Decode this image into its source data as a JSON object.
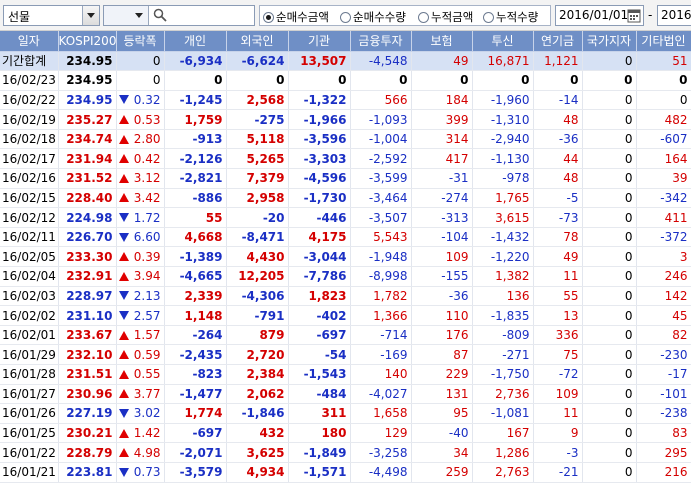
{
  "toolbar": {
    "market_select": "선물",
    "search_value": "",
    "radios": [
      {
        "label": "순매수금액",
        "checked": true
      },
      {
        "label": "순매수수량",
        "checked": false
      },
      {
        "label": "누적금액",
        "checked": false
      },
      {
        "label": "누적수량",
        "checked": false
      }
    ],
    "start_date": "2016/01/01",
    "date_sep": "-",
    "end_date": "2016"
  },
  "columns": [
    "일자",
    "KOSPI200",
    "등락폭",
    "개인",
    "외국인",
    "기관",
    "금융투자",
    "보험",
    "투신",
    "연기금",
    "국가지자",
    "기타법인"
  ],
  "rows": [
    {
      "date": "기간합계",
      "kospi": "234.95",
      "dir": "",
      "chg": "0",
      "c": [
        "-6,934",
        "-6,624",
        "13,507",
        "-4,548",
        "49",
        "16,871",
        "1,121",
        "0",
        "51"
      ],
      "summary": true
    },
    {
      "date": "16/02/23",
      "kospi": "234.95",
      "dir": "",
      "chg": "0",
      "c": [
        "0",
        "0",
        "0",
        "0",
        "0",
        "0",
        "0",
        "0",
        "0"
      ],
      "zero": true
    },
    {
      "date": "16/02/22",
      "kospi": "234.95",
      "dir": "down",
      "chg": "0.32",
      "c": [
        "-1,245",
        "2,568",
        "-1,322",
        "566",
        "184",
        "-1,960",
        "-14",
        "0",
        "0"
      ]
    },
    {
      "date": "16/02/19",
      "kospi": "235.27",
      "dir": "up",
      "chg": "0.53",
      "c": [
        "1,759",
        "-275",
        "-1,966",
        "-1,093",
        "399",
        "-1,310",
        "48",
        "0",
        "482"
      ]
    },
    {
      "date": "16/02/18",
      "kospi": "234.74",
      "dir": "up",
      "chg": "2.80",
      "c": [
        "-913",
        "5,118",
        "-3,596",
        "-1,004",
        "314",
        "-2,940",
        "-36",
        "0",
        "-607"
      ]
    },
    {
      "date": "16/02/17",
      "kospi": "231.94",
      "dir": "up",
      "chg": "0.42",
      "c": [
        "-2,126",
        "5,265",
        "-3,303",
        "-2,592",
        "417",
        "-1,130",
        "44",
        "0",
        "164"
      ]
    },
    {
      "date": "16/02/16",
      "kospi": "231.52",
      "dir": "up",
      "chg": "3.12",
      "c": [
        "-2,821",
        "7,379",
        "-4,596",
        "-3,599",
        "-31",
        "-978",
        "48",
        "0",
        "39"
      ]
    },
    {
      "date": "16/02/15",
      "kospi": "228.40",
      "dir": "up",
      "chg": "3.42",
      "c": [
        "-886",
        "2,958",
        "-1,730",
        "-3,464",
        "-274",
        "1,765",
        "-5",
        "0",
        "-342"
      ]
    },
    {
      "date": "16/02/12",
      "kospi": "224.98",
      "dir": "down",
      "chg": "1.72",
      "c": [
        "55",
        "-20",
        "-446",
        "-3,507",
        "-313",
        "3,615",
        "-73",
        "0",
        "411"
      ]
    },
    {
      "date": "16/02/11",
      "kospi": "226.70",
      "dir": "down",
      "chg": "6.60",
      "c": [
        "4,668",
        "-8,471",
        "4,175",
        "5,543",
        "-104",
        "-1,432",
        "78",
        "0",
        "-372"
      ]
    },
    {
      "date": "16/02/05",
      "kospi": "233.30",
      "dir": "up",
      "chg": "0.39",
      "c": [
        "-1,389",
        "4,430",
        "-3,044",
        "-1,948",
        "109",
        "-1,220",
        "49",
        "0",
        "3"
      ]
    },
    {
      "date": "16/02/04",
      "kospi": "232.91",
      "dir": "up",
      "chg": "3.94",
      "c": [
        "-4,665",
        "12,205",
        "-7,786",
        "-8,998",
        "-155",
        "1,382",
        "11",
        "0",
        "246"
      ]
    },
    {
      "date": "16/02/03",
      "kospi": "228.97",
      "dir": "down",
      "chg": "2.13",
      "c": [
        "2,339",
        "-4,306",
        "1,823",
        "1,782",
        "-36",
        "136",
        "55",
        "0",
        "142"
      ]
    },
    {
      "date": "16/02/02",
      "kospi": "231.10",
      "dir": "down",
      "chg": "2.57",
      "c": [
        "1,148",
        "-791",
        "-402",
        "1,366",
        "110",
        "-1,835",
        "13",
        "0",
        "45"
      ]
    },
    {
      "date": "16/02/01",
      "kospi": "233.67",
      "dir": "up",
      "chg": "1.57",
      "c": [
        "-264",
        "879",
        "-697",
        "-714",
        "176",
        "-809",
        "336",
        "0",
        "82"
      ]
    },
    {
      "date": "16/01/29",
      "kospi": "232.10",
      "dir": "up",
      "chg": "0.59",
      "c": [
        "-2,435",
        "2,720",
        "-54",
        "-169",
        "87",
        "-271",
        "75",
        "0",
        "-230"
      ]
    },
    {
      "date": "16/01/28",
      "kospi": "231.51",
      "dir": "up",
      "chg": "0.55",
      "c": [
        "-823",
        "2,384",
        "-1,543",
        "140",
        "229",
        "-1,750",
        "-72",
        "0",
        "-17"
      ]
    },
    {
      "date": "16/01/27",
      "kospi": "230.96",
      "dir": "up",
      "chg": "3.77",
      "c": [
        "-1,477",
        "2,062",
        "-484",
        "-4,027",
        "131",
        "2,736",
        "109",
        "0",
        "-101"
      ]
    },
    {
      "date": "16/01/26",
      "kospi": "227.19",
      "dir": "down",
      "chg": "3.02",
      "c": [
        "1,774",
        "-1,846",
        "311",
        "1,658",
        "95",
        "-1,081",
        "11",
        "0",
        "-238"
      ]
    },
    {
      "date": "16/01/25",
      "kospi": "230.21",
      "dir": "up",
      "chg": "1.42",
      "c": [
        "-697",
        "432",
        "180",
        "129",
        "-40",
        "167",
        "9",
        "0",
        "83"
      ]
    },
    {
      "date": "16/01/22",
      "kospi": "228.79",
      "dir": "up",
      "chg": "4.98",
      "c": [
        "-2,071",
        "3,625",
        "-1,849",
        "-3,258",
        "34",
        "1,286",
        "-3",
        "0",
        "295"
      ]
    },
    {
      "date": "16/01/21",
      "kospi": "223.81",
      "dir": "down",
      "chg": "0.73",
      "c": [
        "-3,579",
        "4,934",
        "-1,571",
        "-4,498",
        "259",
        "2,763",
        "-21",
        "0",
        "216"
      ]
    }
  ],
  "colors": {
    "header_bg": "#6f8fc6",
    "summary_bg": "#d6e1f4",
    "up": "#d40000",
    "down": "#1a2fc4"
  }
}
